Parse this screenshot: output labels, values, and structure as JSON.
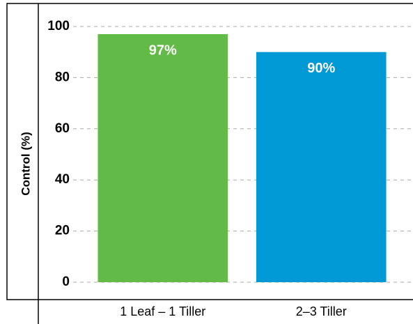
{
  "chart_data": {
    "type": "bar",
    "y_label": "Control (%)",
    "categories": [
      "1 Leaf – 1 Tiller",
      "2–3 Tiller"
    ],
    "values": [
      97,
      90
    ],
    "value_labels": [
      "97%",
      "90%"
    ],
    "colors": [
      "#62bb46",
      "#0099d6"
    ],
    "ylim": [
      0,
      100
    ],
    "yticks": [
      0,
      20,
      40,
      60,
      80,
      100
    ],
    "grid": true
  }
}
